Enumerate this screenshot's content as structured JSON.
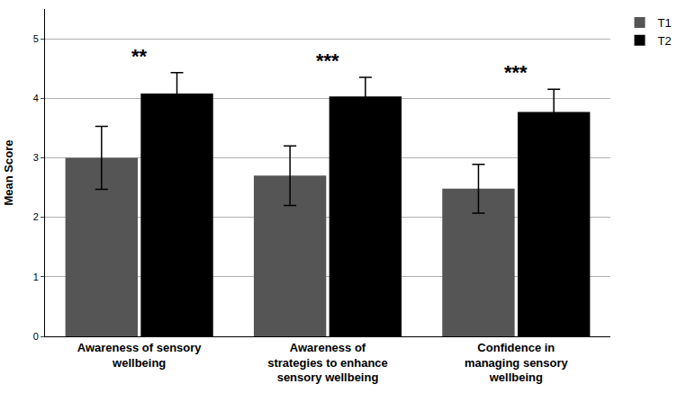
{
  "chart_data": {
    "type": "bar",
    "categories": [
      "Awareness of sensory wellbeing",
      "Awareness of strategies to enhance sensory wellbeing",
      "Confidence in managing sensory wellbeing"
    ],
    "series": [
      {
        "name": "T1",
        "color": "#555555",
        "values": [
          3.0,
          2.7,
          2.48
        ],
        "errors": [
          0.53,
          0.5,
          0.41
        ]
      },
      {
        "name": "T2",
        "color": "#000000",
        "values": [
          4.08,
          4.03,
          3.77
        ],
        "errors": [
          0.35,
          0.32,
          0.38
        ]
      }
    ],
    "y_label": "Mean Score",
    "ylim": [
      0,
      5.5
    ],
    "yticks": [
      0,
      1,
      2,
      3,
      4,
      5
    ],
    "grid": true,
    "legend": "top right",
    "annotations": [
      {
        "category": "Awareness of sensory wellbeing",
        "text": "**"
      },
      {
        "category": "Awareness of strategies to enhance sensory wellbeing",
        "text": "***"
      },
      {
        "category": "Confidence in managing sensory wellbeing",
        "text": "***"
      }
    ]
  }
}
